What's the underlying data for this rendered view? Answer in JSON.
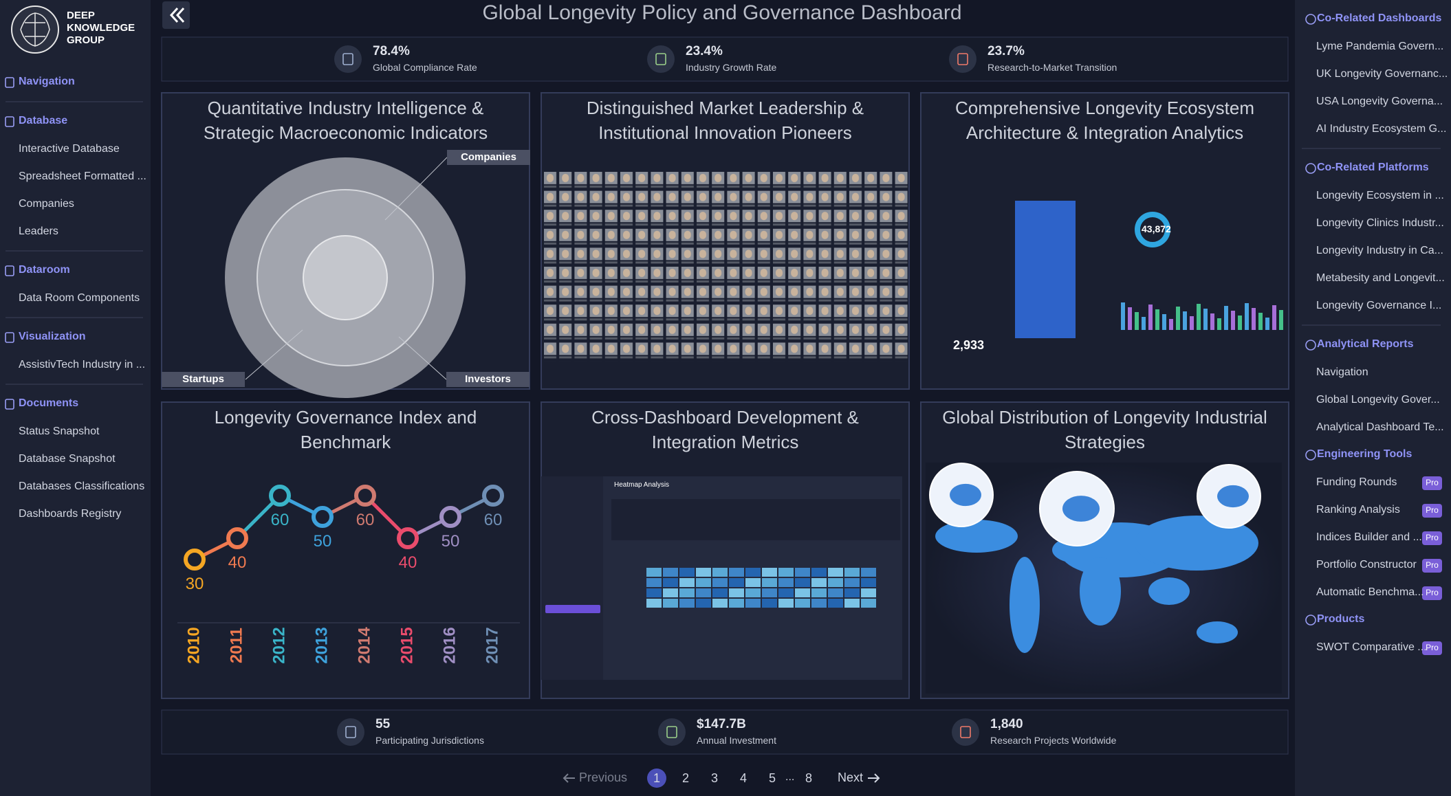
{
  "brand": [
    "DEEP",
    "KNOWLEDGE",
    "GROUP"
  ],
  "title": "Global Longevity Policy and Governance Dashboard",
  "left_nav": [
    {
      "heading": "Navigation",
      "items": []
    },
    {
      "heading": "Database",
      "items": [
        "Interactive Database",
        "Spreadsheet Formatted ...",
        "Companies",
        "Leaders"
      ]
    },
    {
      "heading": "Dataroom",
      "items": [
        "Data Room Components"
      ]
    },
    {
      "heading": "Visualization",
      "items": [
        "AssistivTech Industry in ..."
      ]
    },
    {
      "heading": "Documents",
      "items": [
        "Status Snapshot",
        "Database Snapshot",
        "Databases Classifications",
        "Dashboards Registry"
      ]
    }
  ],
  "top_stats": [
    {
      "value": "78.4%",
      "label": "Global Compliance Rate"
    },
    {
      "value": "23.4%",
      "label": "Industry Growth Rate"
    },
    {
      "value": "23.7%",
      "label": "Research-to-Market Transition"
    }
  ],
  "panels": [
    {
      "title": "Quantitative Industry Intelligence & Strategic Macroeconomic Indicators",
      "labels": [
        "Companies",
        "Startups",
        "Investors"
      ]
    },
    {
      "title": "Distinguished Market Leadership & Institutional Innovation Pioneers"
    },
    {
      "title": "Comprehensive Longevity Ecosystem Architecture & Integration Analytics",
      "labels": [
        "43,872",
        "2,933"
      ]
    },
    {
      "title": "Longevity Governance Index and Benchmark",
      "chart": {
        "categories": [
          "2010",
          "2011",
          "2012",
          "2013",
          "2014",
          "2015",
          "2016",
          "2017"
        ],
        "values": [
          30,
          40,
          60,
          50,
          60,
          40,
          50,
          60
        ]
      }
    },
    {
      "title": "Cross-Dashboard Development & Integration Metrics",
      "labels": [
        "Heatmap Analysis"
      ]
    },
    {
      "title": "Global Distribution of Longevity Industrial Strategies"
    }
  ],
  "bottom_stats": [
    {
      "value": "55",
      "label": "Participating Jurisdictions"
    },
    {
      "value": "$147.7B",
      "label": "Annual Investment"
    },
    {
      "value": "1,840",
      "label": "Research Projects Worldwide"
    }
  ],
  "pagination": {
    "previous": "Previous",
    "pages": [
      1,
      2,
      3,
      4,
      5
    ],
    "ellipsis": "...",
    "last": 8,
    "next": "Next"
  },
  "right_nav": [
    {
      "heading": "Co-Related Dashboards",
      "items": [
        {
          "text": "Lyme Pandemia Govern..."
        },
        {
          "text": "UK Longevity Governanc..."
        },
        {
          "text": "USA Longevity Governa..."
        },
        {
          "text": "AI Industry Ecosystem G..."
        }
      ]
    },
    {
      "heading": "Co-Related Platforms",
      "items": [
        {
          "text": "Longevity Ecosystem in ..."
        },
        {
          "text": "Longevity Clinics Industr..."
        },
        {
          "text": "Longevity Industry in Ca..."
        },
        {
          "text": "Metabesity and Longevit..."
        },
        {
          "text": "Longevity Governance I..."
        }
      ]
    },
    {
      "heading": "Analytical Reports",
      "items": [
        {
          "text": "Navigation"
        },
        {
          "text": "Global Longevity Gover..."
        },
        {
          "text": "Analytical Dashboard Te..."
        }
      ]
    },
    {
      "heading": "Engineering Tools",
      "items": [
        {
          "text": "Funding Rounds",
          "badge": "Pro"
        },
        {
          "text": "Ranking Analysis",
          "badge": "Pro"
        },
        {
          "text": "Indices Builder and ...",
          "badge": "Pro"
        },
        {
          "text": "Portfolio Constructor",
          "badge": "Pro"
        },
        {
          "text": "Automatic Benchma...",
          "badge": "Pro"
        }
      ]
    },
    {
      "heading": "Products",
      "items": [
        {
          "text": "SWOT Comparative ...",
          "badge": "Pro"
        }
      ]
    }
  ]
}
